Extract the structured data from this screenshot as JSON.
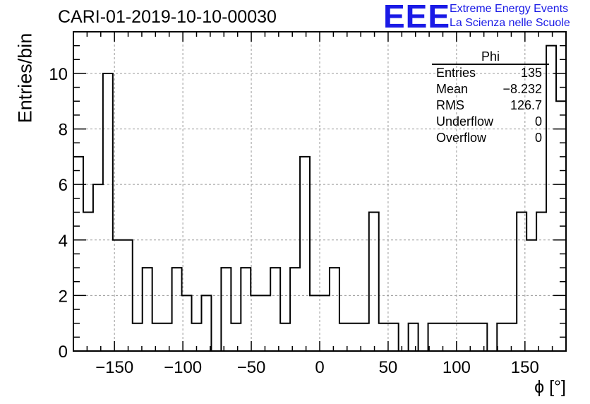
{
  "title": "CARI-01-2019-10-10-00030",
  "logo": {
    "text": "EEE",
    "line1": "Extreme Energy Events",
    "line2": "La Scienza nelle Scuole",
    "color": "#1a1ae6"
  },
  "stats": {
    "name": "Phi",
    "rows": [
      {
        "label": "Entries",
        "value": "135"
      },
      {
        "label": "Mean",
        "value": "−8.232"
      },
      {
        "label": "RMS",
        "value": "126.7"
      },
      {
        "label": "Underflow",
        "value": "0"
      },
      {
        "label": "Overflow",
        "value": "0"
      }
    ]
  },
  "chart_data": {
    "type": "bar",
    "title": "CARI-01-2019-10-10-00030",
    "xlabel": "ϕ [°]",
    "ylabel": "Entries/bin",
    "xlim": [
      -180,
      180
    ],
    "ylim": [
      0,
      11.5
    ],
    "grid": true,
    "bin_width": 7.2,
    "bin_edges_start": -180,
    "values": [
      7,
      5,
      6,
      10,
      4,
      4,
      1,
      3,
      1,
      1,
      3,
      2,
      1,
      2,
      0,
      3,
      1,
      3,
      2,
      2,
      3,
      1,
      3,
      7,
      2,
      2,
      3,
      1,
      1,
      1,
      5,
      1,
      1,
      0,
      1,
      0,
      1,
      1,
      1,
      1,
      1,
      1,
      0,
      1,
      1,
      5,
      4,
      5,
      11,
      9
    ],
    "xticks": [
      -150,
      -100,
      -50,
      0,
      50,
      100,
      150
    ],
    "xtick_labels": [
      "−150",
      "−100",
      "−50",
      "0",
      "50",
      "100",
      "150"
    ],
    "yticks": [
      0,
      2,
      4,
      6,
      8,
      10
    ],
    "ytick_labels": [
      "0",
      "2",
      "4",
      "6",
      "8",
      "10"
    ]
  }
}
